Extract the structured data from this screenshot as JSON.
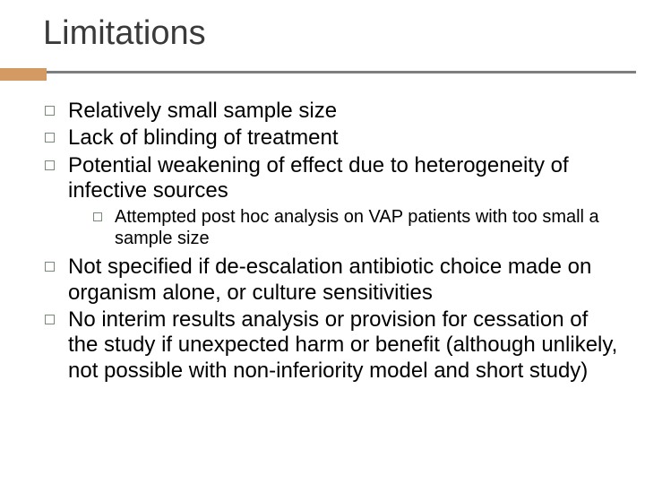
{
  "title": "Limitations",
  "accent_color": "#d39a63",
  "line_color": "#7e7e7e",
  "bullets": [
    {
      "text": "Relatively small sample size"
    },
    {
      "text": "Lack of blinding of treatment"
    },
    {
      "text": "Potential weakening of effect due to heterogeneity of infective sources",
      "sub": [
        {
          "text": "Attempted post hoc analysis on VAP patients with too small a sample size"
        }
      ]
    },
    {
      "text": "Not specified if de-escalation antibiotic choice made on organism alone, or culture sensitivities"
    },
    {
      "text": "No interim results analysis or provision for cessation of the study if unexpected harm or benefit (although unlikely, not possible with non-inferiority model and short study)"
    }
  ]
}
